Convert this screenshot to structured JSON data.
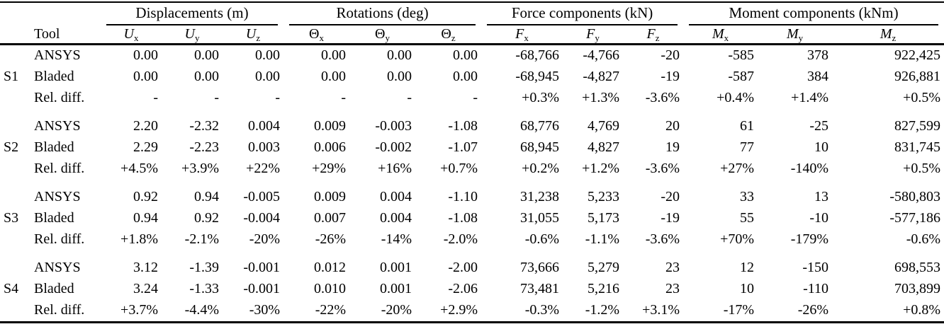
{
  "colors": {
    "background": "#ffffff",
    "text": "#000000",
    "rule": "#000000"
  },
  "table": {
    "tool_header": "Tool",
    "groups_header": [
      {
        "label": "Displacements (m)",
        "span": 3
      },
      {
        "label": "Rotations (deg)",
        "span": 3
      },
      {
        "label": "Force components (kN)",
        "span": 3
      },
      {
        "label": "Moment components (kNm)",
        "span": 3
      }
    ],
    "sub_headers": [
      {
        "name": "ux",
        "base": "U",
        "sub": "x",
        "italic": true
      },
      {
        "name": "uy",
        "base": "U",
        "sub": "y",
        "italic": true
      },
      {
        "name": "uz",
        "base": "U",
        "sub": "z",
        "italic": true
      },
      {
        "name": "theta-x",
        "base": "Θ",
        "sub": "x",
        "italic": false
      },
      {
        "name": "theta-y",
        "base": "Θ",
        "sub": "y",
        "italic": false
      },
      {
        "name": "theta-z",
        "base": "Θ",
        "sub": "z",
        "italic": false
      },
      {
        "name": "fx",
        "base": "F",
        "sub": "x",
        "italic": true
      },
      {
        "name": "fy",
        "base": "F",
        "sub": "y",
        "italic": true
      },
      {
        "name": "fz",
        "base": "F",
        "sub": "z",
        "italic": true
      },
      {
        "name": "mx",
        "base": "M",
        "sub": "x",
        "italic": true
      },
      {
        "name": "my",
        "base": "M",
        "sub": "y",
        "italic": true
      },
      {
        "name": "mz",
        "base": "M",
        "sub": "z",
        "italic": true
      }
    ],
    "row_groups": [
      {
        "label": "S1",
        "rows": [
          {
            "tool": "ANSYS",
            "values": [
              "0.00",
              "0.00",
              "0.00",
              "0.00",
              "0.00",
              "0.00",
              "-68,766",
              "-4,766",
              "-20",
              "-585",
              "378",
              "922,425"
            ]
          },
          {
            "tool": "Bladed",
            "values": [
              "0.00",
              "0.00",
              "0.00",
              "0.00",
              "0.00",
              "0.00",
              "-68,945",
              "-4,827",
              "-19",
              "-587",
              "384",
              "926,881"
            ]
          },
          {
            "tool": "Rel. diff.",
            "values": [
              "-",
              "-",
              "-",
              "-",
              "-",
              "-",
              "+0.3%",
              "+1.3%",
              "-3.6%",
              "+0.4%",
              "+1.4%",
              "+0.5%"
            ]
          }
        ]
      },
      {
        "label": "S2",
        "rows": [
          {
            "tool": "ANSYS",
            "values": [
              "2.20",
              "-2.32",
              "0.004",
              "0.009",
              "-0.003",
              "-1.08",
              "68,776",
              "4,769",
              "20",
              "61",
              "-25",
              "827,599"
            ]
          },
          {
            "tool": "Bladed",
            "values": [
              "2.29",
              "-2.23",
              "0.003",
              "0.006",
              "-0.002",
              "-1.07",
              "68,945",
              "4,827",
              "19",
              "77",
              "10",
              "831,745"
            ]
          },
          {
            "tool": "Rel. diff.",
            "values": [
              "+4.5%",
              "+3.9%",
              "+22%",
              "+29%",
              "+16%",
              "+0.7%",
              "+0.2%",
              "+1.2%",
              "-3.6%",
              "+27%",
              "-140%",
              "+0.5%"
            ]
          }
        ]
      },
      {
        "label": "S3",
        "rows": [
          {
            "tool": "ANSYS",
            "values": [
              "0.92",
              "0.94",
              "-0.005",
              "0.009",
              "0.004",
              "-1.10",
              "31,238",
              "5,233",
              "-20",
              "33",
              "13",
              "-580,803"
            ]
          },
          {
            "tool": "Bladed",
            "values": [
              "0.94",
              "0.92",
              "-0.004",
              "0.007",
              "0.004",
              "-1.08",
              "31,055",
              "5,173",
              "-19",
              "55",
              "-10",
              "-577,186"
            ]
          },
          {
            "tool": "Rel. diff.",
            "values": [
              "+1.8%",
              "-2.1%",
              "-20%",
              "-26%",
              "-14%",
              "-2.0%",
              "-0.6%",
              "-1.1%",
              "-3.6%",
              "+70%",
              "-179%",
              "-0.6%"
            ]
          }
        ]
      },
      {
        "label": "S4",
        "rows": [
          {
            "tool": "ANSYS",
            "values": [
              "3.12",
              "-1.39",
              "-0.001",
              "0.012",
              "0.001",
              "-2.00",
              "73,666",
              "5,279",
              "23",
              "12",
              "-150",
              "698,553"
            ]
          },
          {
            "tool": "Bladed",
            "values": [
              "3.24",
              "-1.33",
              "-0.001",
              "0.010",
              "0.001",
              "-2.06",
              "73,481",
              "5,216",
              "23",
              "10",
              "-110",
              "703,899"
            ]
          },
          {
            "tool": "Rel. diff.",
            "values": [
              "+3.7%",
              "-4.4%",
              "-30%",
              "-22%",
              "-20%",
              "+2.9%",
              "-0.3%",
              "-1.2%",
              "+3.1%",
              "-17%",
              "-26%",
              "+0.8%"
            ]
          }
        ]
      }
    ]
  }
}
